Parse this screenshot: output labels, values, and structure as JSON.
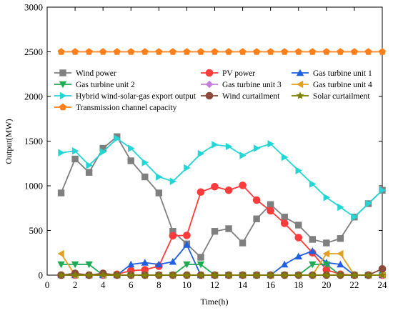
{
  "chart_data": {
    "type": "line",
    "xlabel": "Time(h)",
    "ylabel": "Output(MW)",
    "xlim": [
      0,
      24
    ],
    "ylim": [
      0,
      3000
    ],
    "x_ticks": [
      0,
      2,
      4,
      6,
      8,
      10,
      12,
      14,
      16,
      18,
      20,
      22,
      24
    ],
    "y_ticks": [
      0,
      500,
      1000,
      1500,
      2000,
      2500,
      3000
    ],
    "grid": false,
    "legend_position": "middle",
    "x": [
      1,
      2,
      3,
      4,
      5,
      6,
      7,
      8,
      9,
      10,
      11,
      12,
      13,
      14,
      15,
      16,
      17,
      18,
      19,
      20,
      21,
      22,
      23,
      24
    ],
    "series": [
      {
        "name": "Wind power",
        "color": "#7f7f7f",
        "marker": "square",
        "values": [
          920,
          1300,
          1150,
          1420,
          1550,
          1280,
          1100,
          920,
          490,
          350,
          200,
          490,
          520,
          360,
          630,
          790,
          650,
          560,
          400,
          360,
          410,
          650,
          800,
          950
        ]
      },
      {
        "name": "PV power",
        "color": "#ff3b3b",
        "marker": "circle",
        "values": [
          0,
          0,
          0,
          0,
          10,
          50,
          60,
          100,
          440,
          445,
          930,
          990,
          950,
          1005,
          840,
          720,
          580,
          420,
          250,
          60,
          10,
          0,
          0,
          0
        ]
      },
      {
        "name": "Gas turbine unit 1",
        "color": "#1f5fe0",
        "marker": "triangle-up",
        "values": [
          0,
          0,
          0,
          0,
          0,
          120,
          140,
          120,
          150,
          340,
          0,
          0,
          0,
          0,
          0,
          0,
          120,
          210,
          270,
          140,
          120,
          0,
          0,
          0
        ]
      },
      {
        "name": "Gas turbine unit 2",
        "color": "#1faa55",
        "marker": "triangle-down",
        "values": [
          120,
          120,
          120,
          0,
          0,
          0,
          0,
          0,
          0,
          120,
          120,
          0,
          0,
          0,
          0,
          0,
          0,
          0,
          120,
          120,
          0,
          0,
          0,
          0
        ]
      },
      {
        "name": "Gas turbine unit 3",
        "color": "#c77de0",
        "marker": "diamond",
        "values": [
          0,
          0,
          0,
          0,
          0,
          0,
          0,
          0,
          0,
          0,
          0,
          0,
          0,
          0,
          0,
          0,
          0,
          0,
          0,
          0,
          0,
          0,
          0,
          0
        ]
      },
      {
        "name": "Gas turbine unit 4",
        "color": "#e0a020",
        "marker": "triangle-left",
        "values": [
          240,
          0,
          0,
          0,
          0,
          0,
          0,
          0,
          0,
          0,
          0,
          0,
          0,
          0,
          0,
          0,
          0,
          0,
          0,
          240,
          240,
          0,
          0,
          0
        ]
      },
      {
        "name": "Hybrid wind-solar-gas export output",
        "color": "#22d6d6",
        "marker": "triangle-right",
        "values": [
          1370,
          1390,
          1230,
          1380,
          1530,
          1420,
          1260,
          1100,
          1050,
          1200,
          1360,
          1460,
          1440,
          1340,
          1420,
          1470,
          1320,
          1170,
          1020,
          870,
          760,
          650,
          800,
          950
        ]
      },
      {
        "name": "Wind curtailment",
        "color": "#8b4a3a",
        "marker": "circle",
        "values": [
          0,
          20,
          0,
          20,
          0,
          0,
          0,
          0,
          0,
          0,
          0,
          0,
          0,
          0,
          0,
          0,
          0,
          0,
          0,
          0,
          0,
          0,
          0,
          70
        ]
      },
      {
        "name": "Solar curtailment",
        "color": "#7f7f00",
        "marker": "star",
        "values": [
          0,
          0,
          0,
          0,
          0,
          0,
          0,
          0,
          0,
          0,
          0,
          0,
          0,
          0,
          0,
          0,
          0,
          0,
          0,
          0,
          0,
          0,
          0,
          0
        ]
      },
      {
        "name": "Transmission channel capacity",
        "color": "#ff7f1a",
        "marker": "pentagon",
        "values": [
          2500,
          2500,
          2500,
          2500,
          2500,
          2500,
          2500,
          2500,
          2500,
          2500,
          2500,
          2500,
          2500,
          2500,
          2500,
          2500,
          2500,
          2500,
          2500,
          2500,
          2500,
          2500,
          2500,
          2500
        ]
      }
    ]
  }
}
